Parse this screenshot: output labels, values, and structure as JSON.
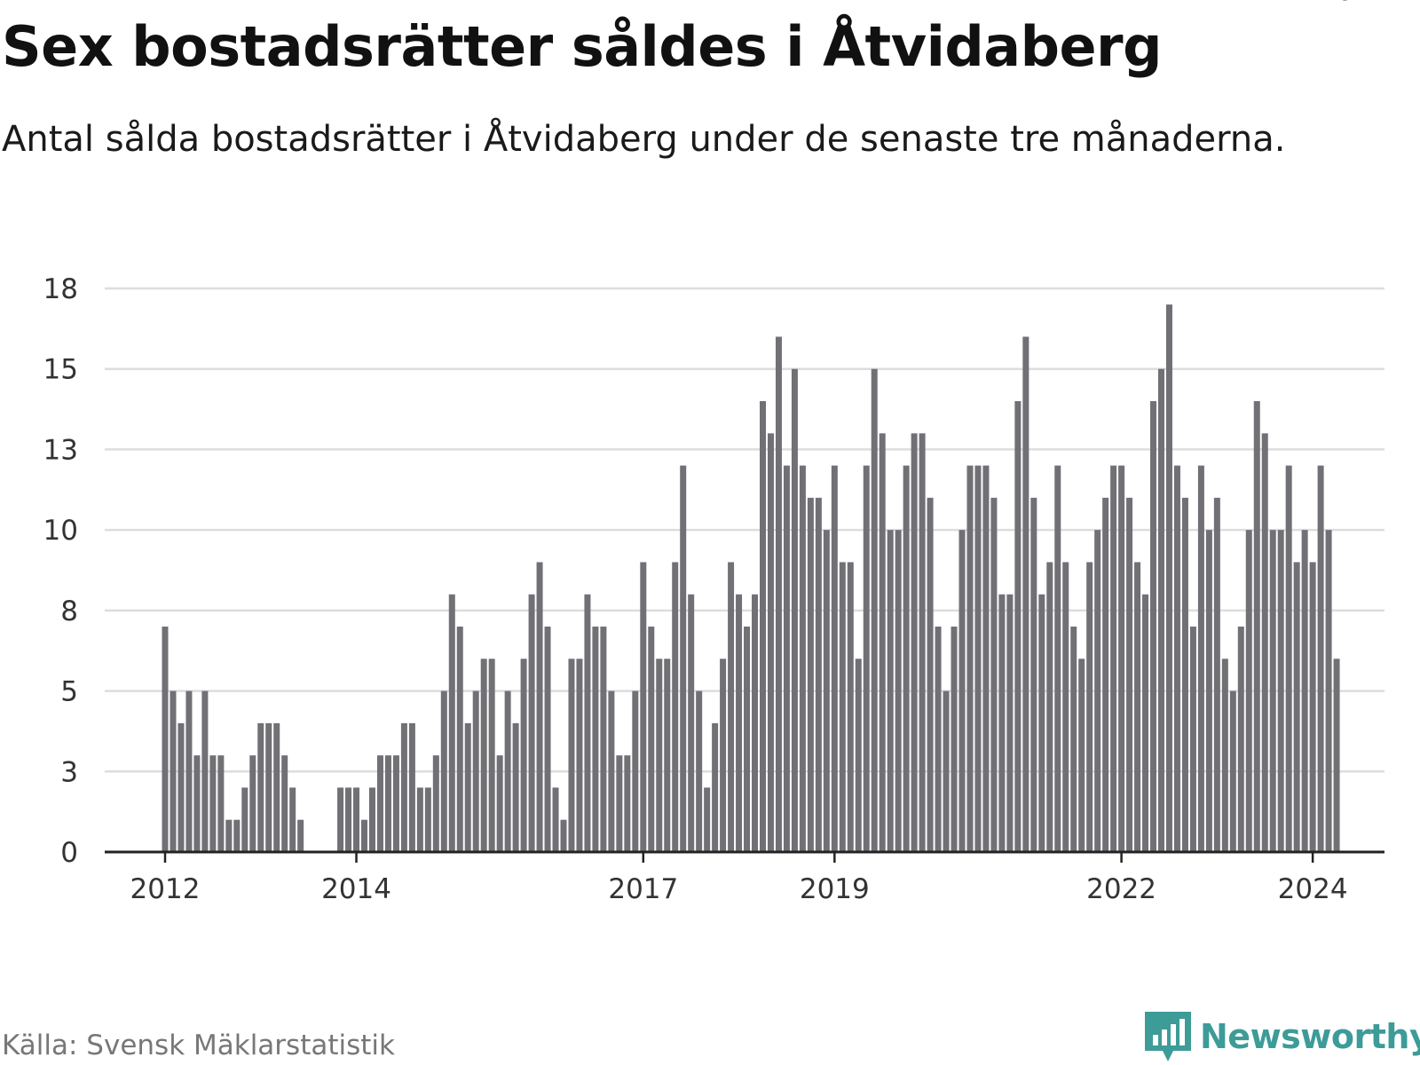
{
  "title": "Sex bostadsrätter såldes i Åtvidaberg",
  "subtitle": "Antal sålda bostadsrätter i Åtvidaberg under de senaste tre månaderna.",
  "source": "Källa: Svensk Mäklarstatistik",
  "brand": "Newsworthy",
  "colors": {
    "bar": "#717075",
    "highlight": "#1aa39b",
    "grid": "#dddddd",
    "axis": "#222222",
    "brand": "#3d9b98"
  },
  "chart_data": {
    "type": "bar",
    "title": "Sex bostadsrätter såldes i Åtvidaberg",
    "xlabel": "",
    "ylabel": "",
    "ylim": [
      0,
      18
    ],
    "yticks": [
      {
        "value": 0,
        "label": "0"
      },
      {
        "value": 2.5,
        "label": "3"
      },
      {
        "value": 5,
        "label": "5"
      },
      {
        "value": 7.5,
        "label": "8"
      },
      {
        "value": 10,
        "label": "10"
      },
      {
        "value": 12.5,
        "label": "13"
      },
      {
        "value": 15,
        "label": "15"
      },
      {
        "value": 17.5,
        "label": "18"
      }
    ],
    "xticks": [
      {
        "index": 0,
        "label": "2012"
      },
      {
        "index": 24,
        "label": "2014"
      },
      {
        "index": 60,
        "label": "2017"
      },
      {
        "index": 84,
        "label": "2019"
      },
      {
        "index": 120,
        "label": "2022"
      },
      {
        "index": 144,
        "label": "2024"
      }
    ],
    "start_year": 2012,
    "start_month": 1,
    "values": [
      7,
      5,
      4,
      5,
      3,
      5,
      3,
      3,
      1,
      1,
      2,
      3,
      4,
      4,
      4,
      3,
      2,
      1,
      0,
      0,
      0,
      0,
      2,
      2,
      2,
      1,
      2,
      3,
      3,
      3,
      4,
      4,
      2,
      2,
      3,
      5,
      8,
      7,
      4,
      5,
      6,
      6,
      3,
      5,
      4,
      6,
      8,
      9,
      7,
      2,
      1,
      6,
      6,
      8,
      7,
      7,
      5,
      3,
      3,
      5,
      9,
      7,
      6,
      6,
      9,
      12,
      8,
      5,
      2,
      4,
      6,
      9,
      8,
      7,
      8,
      14,
      13,
      16,
      12,
      15,
      12,
      11,
      11,
      10,
      12,
      9,
      9,
      6,
      12,
      15,
      13,
      10,
      10,
      12,
      13,
      13,
      11,
      7,
      5,
      7,
      10,
      12,
      12,
      12,
      11,
      8,
      8,
      14,
      16,
      11,
      8,
      9,
      12,
      9,
      7,
      6,
      9,
      10,
      11,
      12,
      12,
      11,
      9,
      8,
      14,
      15,
      17,
      12,
      11,
      7,
      12,
      10,
      11,
      6,
      5,
      7,
      10,
      14,
      13,
      10,
      10,
      12,
      9,
      10,
      9,
      12,
      10,
      6
    ],
    "highlight_index": 148,
    "highlight_label": "6"
  }
}
